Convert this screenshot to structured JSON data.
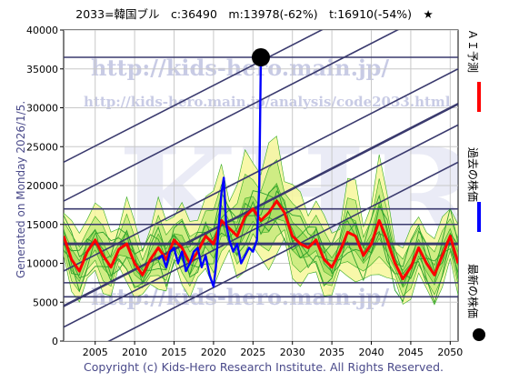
{
  "chart_data": {
    "type": "line",
    "title": "2033=韓国ブル　c:36490　m:13978(-62%)　t:16910(-54%)　★",
    "xlim": [
      2001,
      2051
    ],
    "ylim": [
      0,
      40000
    ],
    "x_ticks": [
      2005,
      2010,
      2015,
      2020,
      2025,
      2030,
      2035,
      2040,
      2045,
      2050
    ],
    "y_ticks": [
      0,
      5000,
      10000,
      15000,
      20000,
      25000,
      30000,
      35000,
      40000
    ],
    "current_point": {
      "x": 2026.0,
      "y": 36490
    },
    "horizontal_lines": [
      36490,
      17000,
      15000,
      12500,
      7500,
      5700
    ],
    "series": [
      {
        "name": "ＡＩ予測",
        "color": "#ff0000",
        "x": [
          2001,
          2002,
          2003,
          2004,
          2005,
          2006,
          2007,
          2008,
          2009,
          2010,
          2011,
          2012,
          2013,
          2014,
          2015,
          2016,
          2017,
          2018,
          2019,
          2020,
          2021,
          2022,
          2023,
          2024,
          2025,
          2026,
          2027,
          2028,
          2029,
          2030,
          2031,
          2032,
          2033,
          2034,
          2035,
          2036,
          2037,
          2038,
          2039,
          2040,
          2041,
          2042,
          2043,
          2044,
          2045,
          2046,
          2047,
          2048,
          2049,
          2050,
          2051
        ],
        "y": [
          13500,
          10500,
          9000,
          11500,
          13000,
          11000,
          9500,
          11800,
          12500,
          10000,
          8500,
          10500,
          12000,
          10500,
          13000,
          12000,
          10000,
          11500,
          13500,
          12500,
          15500,
          14500,
          13500,
          16000,
          17000,
          15500,
          16500,
          18000,
          16500,
          13500,
          12500,
          12000,
          13000,
          10500,
          9500,
          11500,
          14000,
          13500,
          11000,
          12500,
          15500,
          13000,
          10000,
          8000,
          9500,
          12000,
          10000,
          8500,
          11000,
          13500,
          10000
        ]
      },
      {
        "name": "過去の株価",
        "color": "#0000ff",
        "x": [
          2013.0,
          2013.5,
          2014.0,
          2014.5,
          2015.0,
          2015.5,
          2016.0,
          2016.5,
          2017.0,
          2017.5,
          2018.0,
          2018.5,
          2019.0,
          2019.5,
          2020.0,
          2020.3,
          2020.6,
          2021.0,
          2021.3,
          2021.6,
          2022.0,
          2022.5,
          2023.0,
          2023.5,
          2024.0,
          2024.5,
          2025.0,
          2025.5,
          2025.8,
          2026.0
        ],
        "y": [
          10500,
          11000,
          9500,
          11500,
          12000,
          10000,
          11500,
          9000,
          10000,
          11500,
          12000,
          9500,
          11000,
          8500,
          7000,
          9500,
          14000,
          19000,
          21000,
          15000,
          13000,
          11500,
          12500,
          10000,
          11000,
          12000,
          11500,
          13000,
          20000,
          36490
        ]
      }
    ],
    "legend": [
      {
        "label": "ＡＩ予測",
        "color": "#ff0000"
      },
      {
        "label": "過去の株価",
        "color": "#0000ff"
      },
      {
        "label": "最新の株価",
        "color": "#000000"
      }
    ]
  },
  "watermark": {
    "url1": "http://kids-hero.main.jp/",
    "url2": "http://kids-hero.main.jp/analysis/code2033.html",
    "big": "KHRI",
    "url3": "http://kids-hero.main.jp/"
  },
  "side_text": "Generated on Monday 2026/1/5.",
  "copyright": "Copyright (c) Kids-Hero Research Institute. All Rights Reserved."
}
